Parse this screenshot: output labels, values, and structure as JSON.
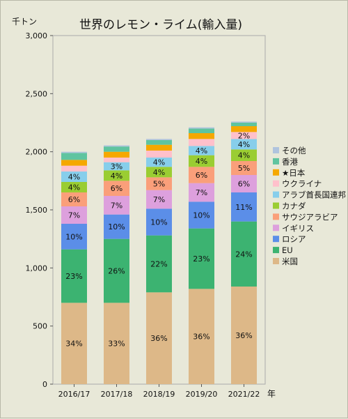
{
  "chart_data": {
    "type": "bar",
    "stacked": true,
    "title": "世界のレモン・ライム(輸入量)",
    "y_unit_label": "千トン",
    "x_unit_label": "年",
    "ylim": [
      0,
      3000
    ],
    "y_ticks": [
      "0",
      "500",
      "1,000",
      "1,500",
      "2,000",
      "2,500",
      "3,000"
    ],
    "y_tick_values": [
      0,
      500,
      1000,
      1500,
      2000,
      2500,
      3000
    ],
    "grid": false,
    "legend_position": "right",
    "categories": [
      "2016/17",
      "2017/18",
      "2018/19",
      "2019/20",
      "2021/22"
    ],
    "series": [
      {
        "name": "米国",
        "color": "#ddb888",
        "values": [
          700,
          700,
          790,
          820,
          840
        ],
        "labels": [
          "34%",
          "33%",
          "36%",
          "36%",
          "36%"
        ]
      },
      {
        "name": "EU",
        "color": "#3cb371",
        "values": [
          460,
          550,
          490,
          520,
          560
        ],
        "labels": [
          "23%",
          "26%",
          "22%",
          "23%",
          "24%"
        ]
      },
      {
        "name": "ロシア",
        "color": "#5b8ee8",
        "values": [
          220,
          210,
          230,
          230,
          250
        ],
        "labels": [
          "10%",
          "10%",
          "10%",
          "10%",
          "11%"
        ]
      },
      {
        "name": "イギリス",
        "color": "#dda0dd",
        "values": [
          150,
          160,
          160,
          160,
          150
        ],
        "labels": [
          "7%",
          "7%",
          "7%",
          "7%",
          "6%"
        ]
      },
      {
        "name": "サウジアラビア",
        "color": "#fa9f7a",
        "values": [
          120,
          130,
          110,
          140,
          120
        ],
        "labels": [
          "6%",
          "6%",
          "5%",
          "6%",
          "5%"
        ]
      },
      {
        "name": "カナダ",
        "color": "#9acd32",
        "values": [
          90,
          90,
          90,
          100,
          100
        ],
        "labels": [
          "4%",
          "4%",
          "4%",
          "4%",
          "4%"
        ]
      },
      {
        "name": "アラブ首長国連邦",
        "color": "#87ceeb",
        "values": [
          90,
          70,
          80,
          80,
          90
        ],
        "labels": [
          "4%",
          "3%",
          "4%",
          "4%",
          "4%"
        ]
      },
      {
        "name": "ウクライナ",
        "color": "#ffc0cb",
        "values": [
          50,
          40,
          60,
          60,
          60
        ],
        "labels": [
          "",
          "",
          "",
          "",
          "2%"
        ]
      },
      {
        "name": "★日本",
        "color": "#f5a800",
        "values": [
          50,
          50,
          50,
          50,
          50
        ],
        "labels": [
          "",
          "",
          "",
          "",
          ""
        ]
      },
      {
        "name": "香港",
        "color": "#5fc4a0",
        "values": [
          60,
          45,
          40,
          40,
          30
        ],
        "labels": [
          "",
          "",
          "",
          "",
          ""
        ]
      },
      {
        "name": "その他",
        "color": "#b0c4de",
        "values": [
          10,
          10,
          10,
          10,
          10
        ],
        "labels": [
          "",
          "",
          "",
          "",
          ""
        ]
      }
    ]
  }
}
